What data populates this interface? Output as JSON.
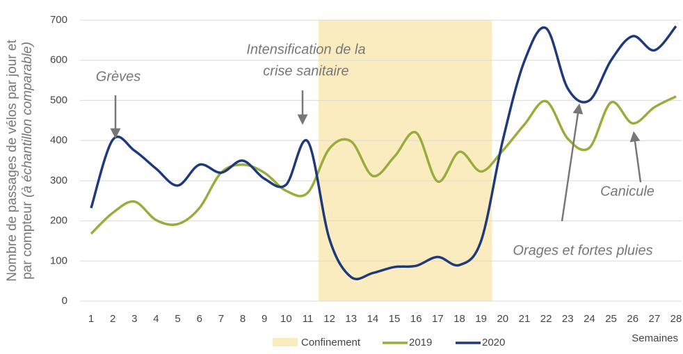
{
  "chart_data": {
    "type": "line",
    "categories": [
      1,
      2,
      3,
      4,
      5,
      6,
      7,
      8,
      9,
      10,
      11,
      12,
      13,
      14,
      15,
      16,
      17,
      18,
      19,
      20,
      21,
      22,
      23,
      24,
      25,
      26,
      27,
      28
    ],
    "series": [
      {
        "name": "2019",
        "color": "#97ae3c",
        "values": [
          168,
          220,
          248,
          202,
          192,
          232,
          320,
          340,
          320,
          275,
          270,
          380,
          398,
          312,
          360,
          420,
          298,
          372,
          323,
          375,
          440,
          498,
          405,
          382,
          495,
          443,
          483,
          510
        ]
      },
      {
        "name": "2020",
        "color": "#1f3a7a",
        "values": [
          232,
          402,
          375,
          330,
          288,
          340,
          320,
          350,
          305,
          290,
          398,
          155,
          60,
          70,
          85,
          88,
          110,
          90,
          150,
          400,
          598,
          680,
          530,
          500,
          600,
          660,
          625,
          685
        ]
      }
    ],
    "shaded_span": {
      "name": "Confinement",
      "color": "#fbecc0",
      "x": [
        11.5,
        19.5
      ]
    },
    "ylim": [
      0,
      700
    ],
    "yticks": [
      0,
      100,
      200,
      300,
      400,
      500,
      600,
      700
    ],
    "grid": true,
    "y_label": [
      "Nombre de passages de vélos par jour et",
      "par compteur",
      "(à échantillon comparable)"
    ],
    "x_label": "Semaines",
    "annotations": [
      [
        "Grèves"
      ],
      [
        "Intensification de la",
        "crise sanitaire"
      ],
      [
        "Canicule"
      ],
      [
        "Orages et fortes pluies"
      ]
    ]
  }
}
